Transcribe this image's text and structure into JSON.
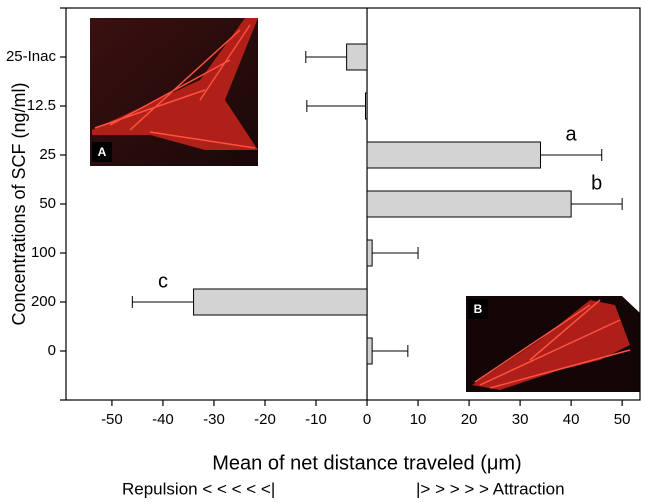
{
  "chart_data": {
    "type": "bar",
    "orientation": "horizontal",
    "x_label": "Mean of net distance traveled (μm)",
    "y_label": "Concentrations of SCF (ng/ml)",
    "direction_labels": [
      "Repulsion < < < < <|",
      "|> > > > >  Attraction"
    ],
    "categories": [
      "25-Inac",
      "12.5",
      "25",
      "50",
      "100",
      "200",
      "0"
    ],
    "values": [
      -4,
      -0.3,
      34,
      40,
      1,
      -34,
      1
    ],
    "errors": [
      8,
      11.5,
      12,
      10,
      9,
      12,
      7
    ],
    "letters": [
      null,
      null,
      "a",
      "b",
      null,
      "c",
      null
    ],
    "color": "#d3d3d3",
    "xlim": [
      -59,
      53.5
    ],
    "xticks": [
      -50,
      -40,
      -30,
      -20,
      -10,
      0,
      10,
      20,
      30,
      40,
      50
    ],
    "insets": [
      {
        "label": "A"
      },
      {
        "label": "B"
      }
    ]
  }
}
